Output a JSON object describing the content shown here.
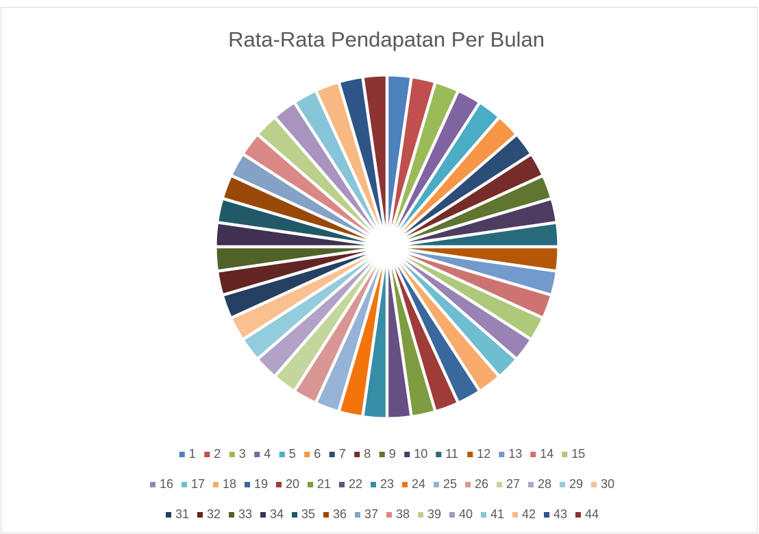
{
  "chart_data": {
    "type": "pie",
    "title": "Rata-Rata Pendapatan Per Bulan",
    "categories": [
      "1",
      "2",
      "3",
      "4",
      "5",
      "6",
      "7",
      "8",
      "9",
      "10",
      "11",
      "12",
      "13",
      "14",
      "15",
      "16",
      "17",
      "18",
      "19",
      "20",
      "21",
      "22",
      "23",
      "24",
      "25",
      "26",
      "27",
      "28",
      "29",
      "30",
      "31",
      "32",
      "33",
      "34",
      "35",
      "36",
      "37",
      "38",
      "39",
      "40",
      "41",
      "42",
      "43",
      "44"
    ],
    "values": [
      100,
      100,
      100,
      100,
      100,
      100,
      100,
      100,
      100,
      100,
      100,
      100,
      100,
      100,
      100,
      100,
      100,
      100,
      100,
      100,
      100,
      100,
      100,
      100,
      100,
      100,
      100,
      100,
      100,
      100,
      100,
      100,
      100,
      100,
      100,
      100,
      100,
      100,
      100,
      100,
      100,
      100,
      100,
      100
    ],
    "colors": [
      "#4F81BD",
      "#C0504D",
      "#9BBB59",
      "#8064A2",
      "#4BACC6",
      "#F79646",
      "#2C4D75",
      "#772C2A",
      "#5F7530",
      "#4D3B62",
      "#276A7C",
      "#B65708",
      "#729ACA",
      "#CD7371",
      "#AFC97A",
      "#9983B5",
      "#6FBDD1",
      "#F9AB6B",
      "#3A679C",
      "#9F3B38",
      "#7E9C40",
      "#664F83",
      "#358EA6",
      "#F3740B",
      "#95B3D7",
      "#D99694",
      "#C3D69B",
      "#B3A2C7",
      "#93CDDD",
      "#FAC090",
      "#254061",
      "#632523",
      "#4F6228",
      "#3F3151",
      "#215968",
      "#984807",
      "#84A2C6",
      "#DA8886",
      "#BCD08C",
      "#A894BF",
      "#86C6D8",
      "#FAB882",
      "#2E5587",
      "#8B3432"
    ],
    "legend": "bottom"
  }
}
